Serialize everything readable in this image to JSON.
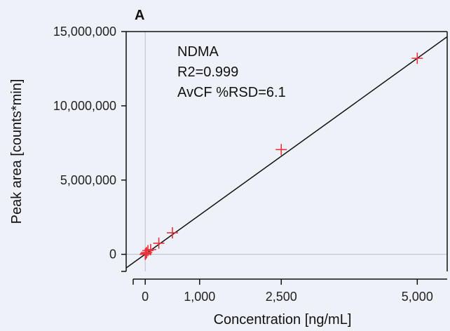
{
  "chart_data": {
    "type": "scatter",
    "panel_label": "A",
    "xlabel": "Concentration [ng/mL]",
    "ylabel": "Peak area [counts*min]",
    "xlim": [
      -350,
      5550
    ],
    "ylim": [
      -1150000,
      15000000
    ],
    "x_ticks": [
      {
        "value": 0,
        "label": "0"
      },
      {
        "value": 1000,
        "label": "1,000"
      },
      {
        "value": 2500,
        "label": "2,500"
      },
      {
        "value": 5000,
        "label": "5,000"
      }
    ],
    "y_ticks": [
      {
        "value": 0,
        "label": "0"
      },
      {
        "value": 5000000,
        "label": "5,000,000"
      },
      {
        "value": 10000000,
        "label": "10,000,000"
      },
      {
        "value": 15000000,
        "label": "15,000,000"
      }
    ],
    "annotations": [
      "NDMA",
      "R2=0.999",
      "AvCF %RSD=6.1"
    ],
    "points": [
      {
        "x": 0,
        "y": 0
      },
      {
        "x": 10,
        "y": 50000
      },
      {
        "x": 25,
        "y": 120000
      },
      {
        "x": 50,
        "y": 250000
      },
      {
        "x": 100,
        "y": 320000
      },
      {
        "x": 250,
        "y": 750000
      },
      {
        "x": 500,
        "y": 1450000
      },
      {
        "x": 2500,
        "y": 7050000
      },
      {
        "x": 5000,
        "y": 13200000
      }
    ],
    "fit_line": {
      "x": [
        -400,
        5550
      ],
      "y": [
        -1050000,
        14650000
      ]
    },
    "reference_lines": {
      "x": 0,
      "y": 0
    },
    "colors": {
      "points": "#e8323c",
      "fit": "#111111",
      "reference": "#b8bcc4",
      "frame": "#111111"
    },
    "grid": false
  }
}
